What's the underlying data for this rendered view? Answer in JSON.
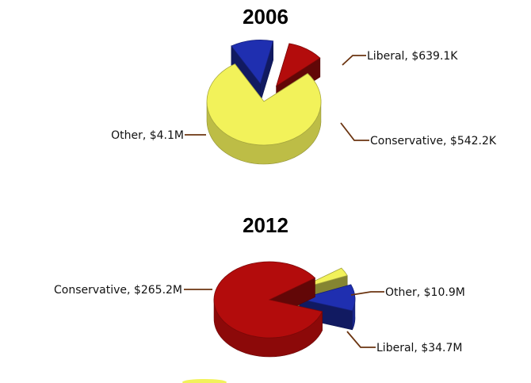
{
  "chart_data": [
    {
      "type": "pie",
      "title": "2006",
      "categories": [
        "Other",
        "Liberal",
        "Conservative"
      ],
      "values": [
        4100000,
        639100,
        542200
      ],
      "labels": [
        "Other, $4.1M",
        "Liberal, $639.1K",
        "Conservative, $542.2K"
      ],
      "colors": [
        "#f2f25a",
        "#1f2fb0",
        "#b30c0c"
      ],
      "style": "3d-exploded"
    },
    {
      "type": "pie",
      "title": "2012",
      "categories": [
        "Conservative",
        "Other",
        "Liberal"
      ],
      "values": [
        265200000,
        10900000,
        34700000
      ],
      "labels": [
        "Conservative, $265.2M",
        "Other, $10.9M",
        "Liberal, $34.7M"
      ],
      "colors": [
        "#b30c0c",
        "#f2f25a",
        "#1f2fb0"
      ],
      "style": "3d-exploded"
    }
  ]
}
